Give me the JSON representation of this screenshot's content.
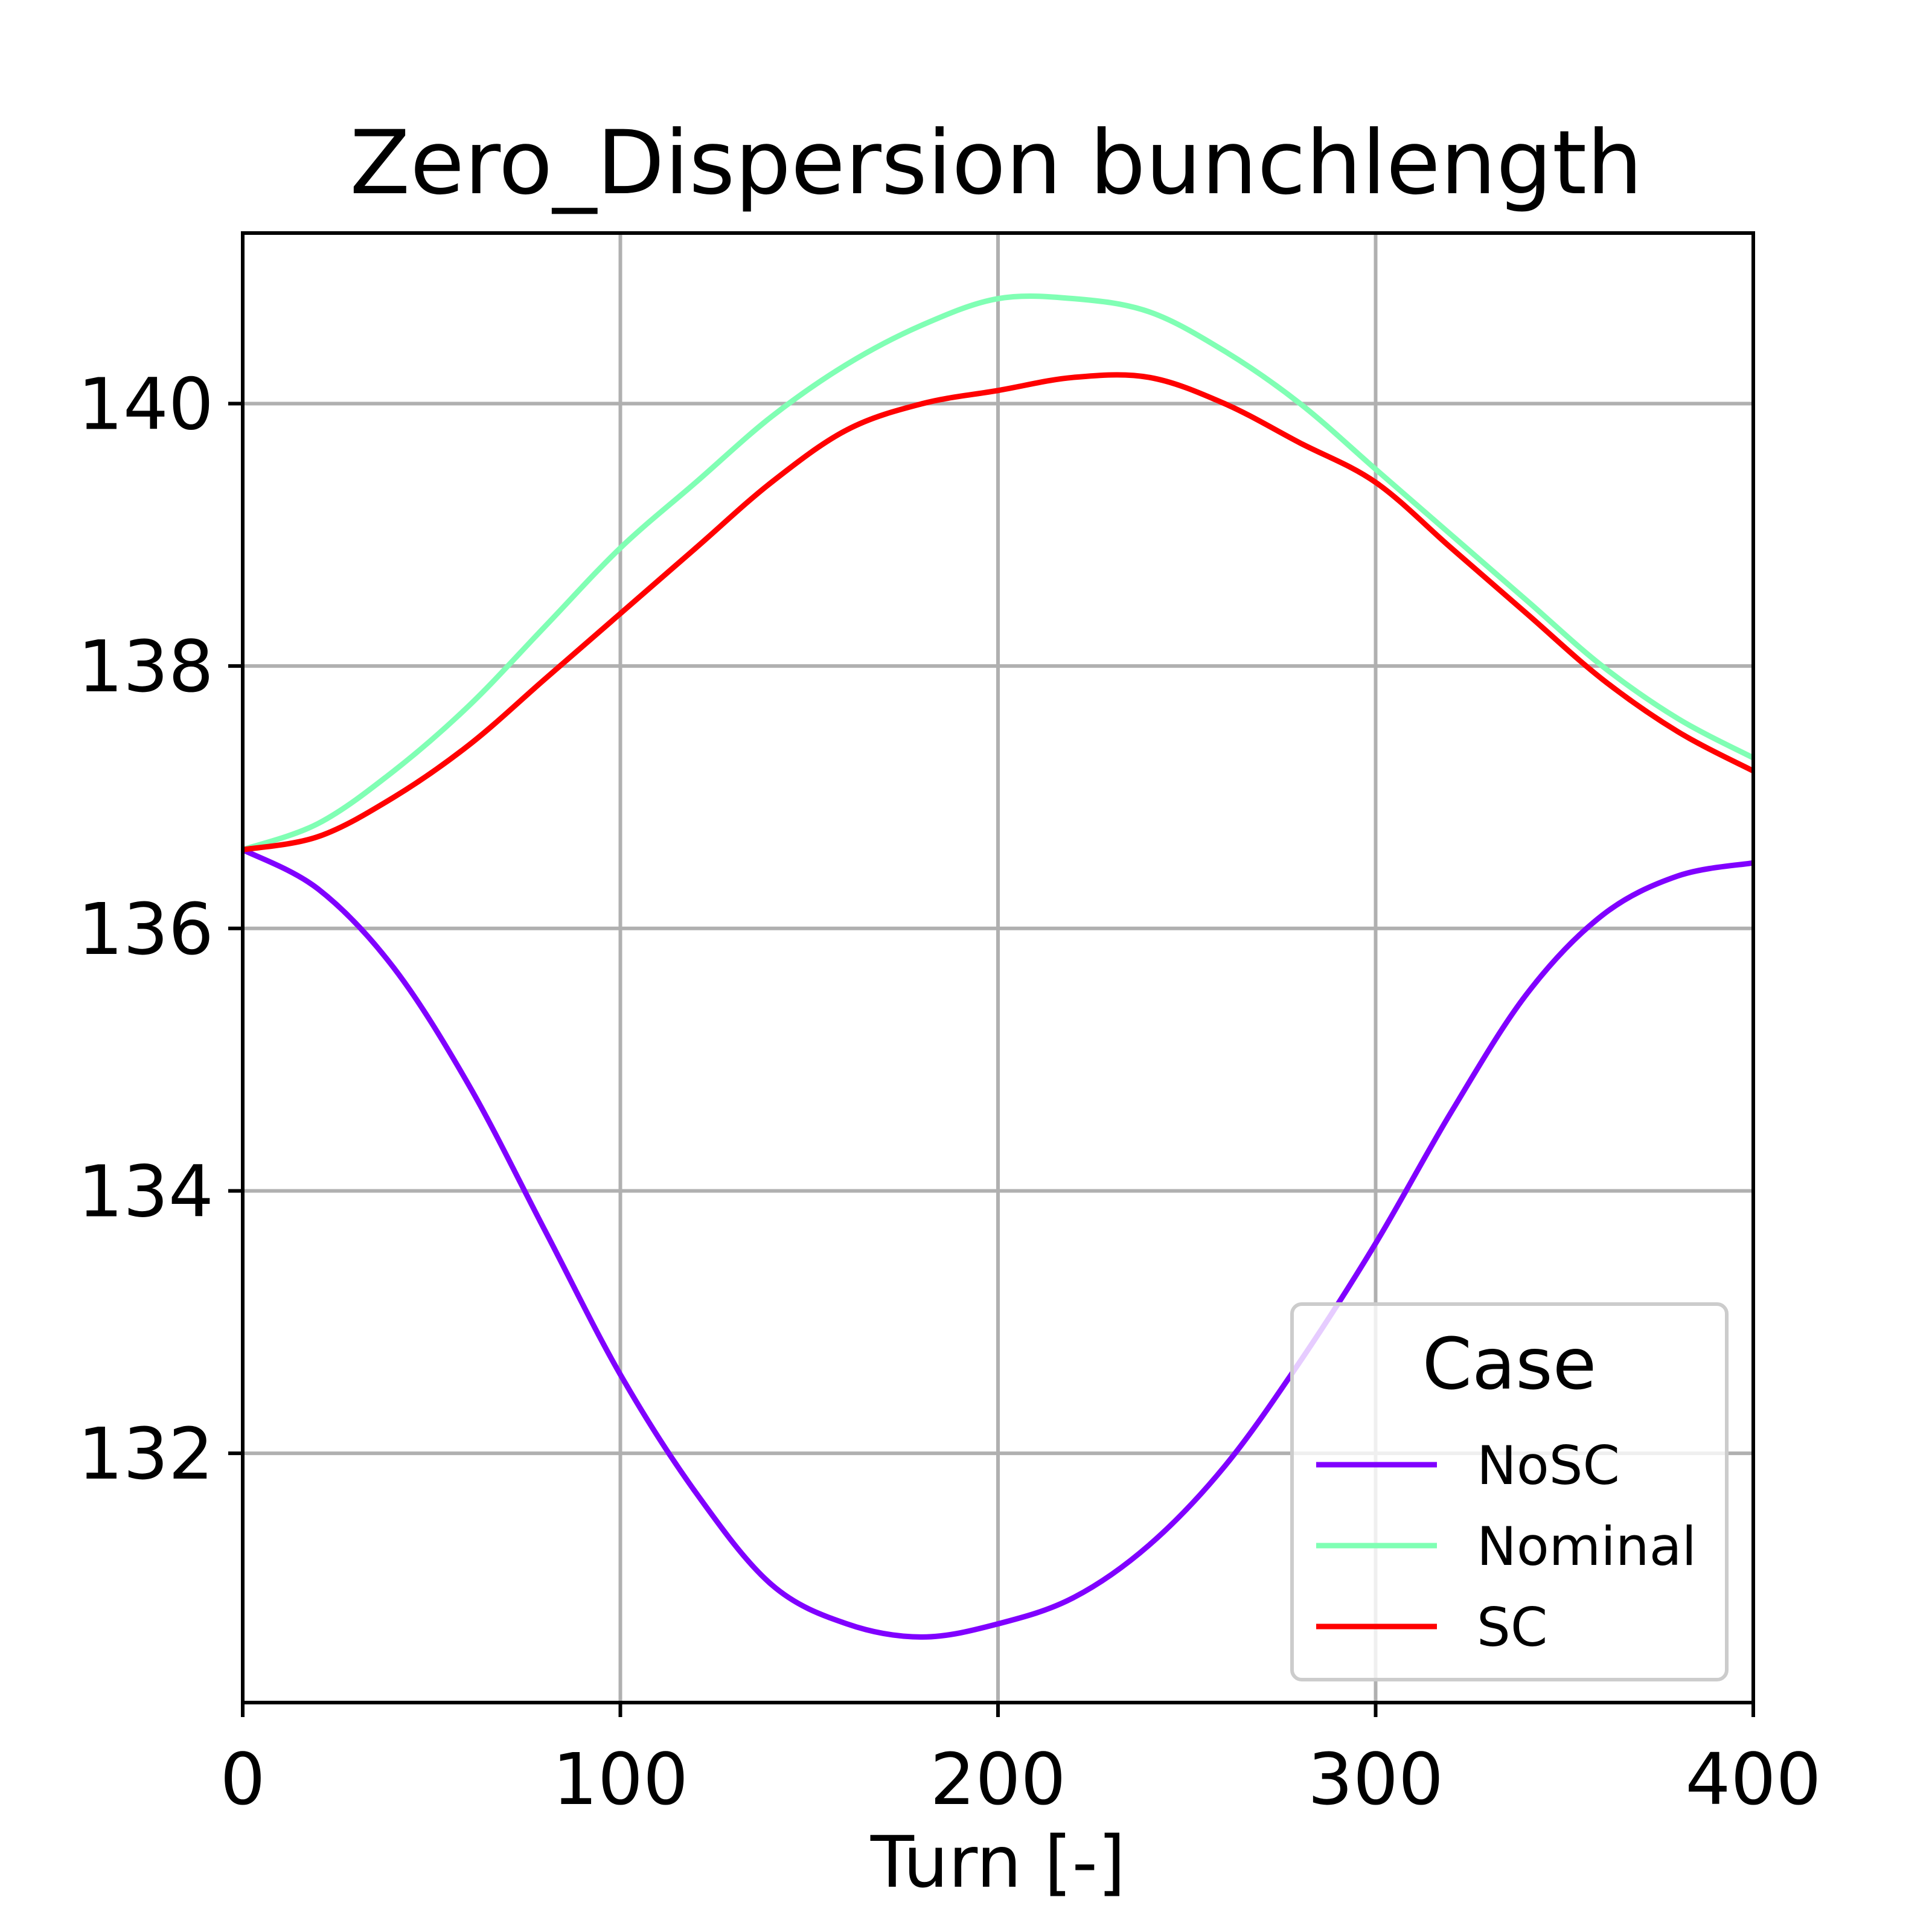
{
  "chart_data": {
    "type": "line",
    "title": "Zero_Dispersion  bunchlength",
    "xlabel": "Turn [-]",
    "ylabel": "",
    "xlim": [
      0,
      400
    ],
    "ylim": [
      130.1,
      141.3
    ],
    "xticks": [
      0,
      100,
      200,
      300,
      400
    ],
    "yticks": [
      132,
      134,
      136,
      138,
      140
    ],
    "grid": true,
    "legend": {
      "title": "Case",
      "position": "lower-right"
    },
    "series": [
      {
        "name": "NoSC",
        "color": "#8000ff",
        "x": [
          0,
          20,
          40,
          60,
          80,
          100,
          120,
          140,
          160,
          180,
          200,
          220,
          240,
          260,
          280,
          300,
          320,
          340,
          360,
          380,
          400
        ],
        "y": [
          136.6,
          136.3,
          135.7,
          134.8,
          133.7,
          132.6,
          131.7,
          131.0,
          130.7,
          130.6,
          130.7,
          130.9,
          131.3,
          131.9,
          132.7,
          133.6,
          134.6,
          135.5,
          136.1,
          136.4,
          136.5
        ]
      },
      {
        "name": "Nominal",
        "color": "#80ffb4",
        "x": [
          0,
          20,
          40,
          60,
          80,
          100,
          120,
          140,
          160,
          180,
          200,
          220,
          240,
          260,
          280,
          300,
          320,
          340,
          360,
          380,
          400
        ],
        "y": [
          136.6,
          136.8,
          137.2,
          137.7,
          138.3,
          138.9,
          139.4,
          139.9,
          140.3,
          140.6,
          140.8,
          140.8,
          140.7,
          140.4,
          140.0,
          139.5,
          139.0,
          138.5,
          138.0,
          137.6,
          137.3
        ]
      },
      {
        "name": "SC",
        "color": "#ff0000",
        "x": [
          0,
          20,
          40,
          60,
          80,
          100,
          120,
          140,
          160,
          180,
          200,
          220,
          240,
          260,
          280,
          300,
          320,
          340,
          360,
          380,
          400
        ],
        "y": [
          136.6,
          136.7,
          137.0,
          137.4,
          137.9,
          138.4,
          138.9,
          139.4,
          139.8,
          140.0,
          140.1,
          140.2,
          140.2,
          140.0,
          139.7,
          139.4,
          138.9,
          138.4,
          137.9,
          137.5,
          137.2
        ]
      }
    ]
  }
}
